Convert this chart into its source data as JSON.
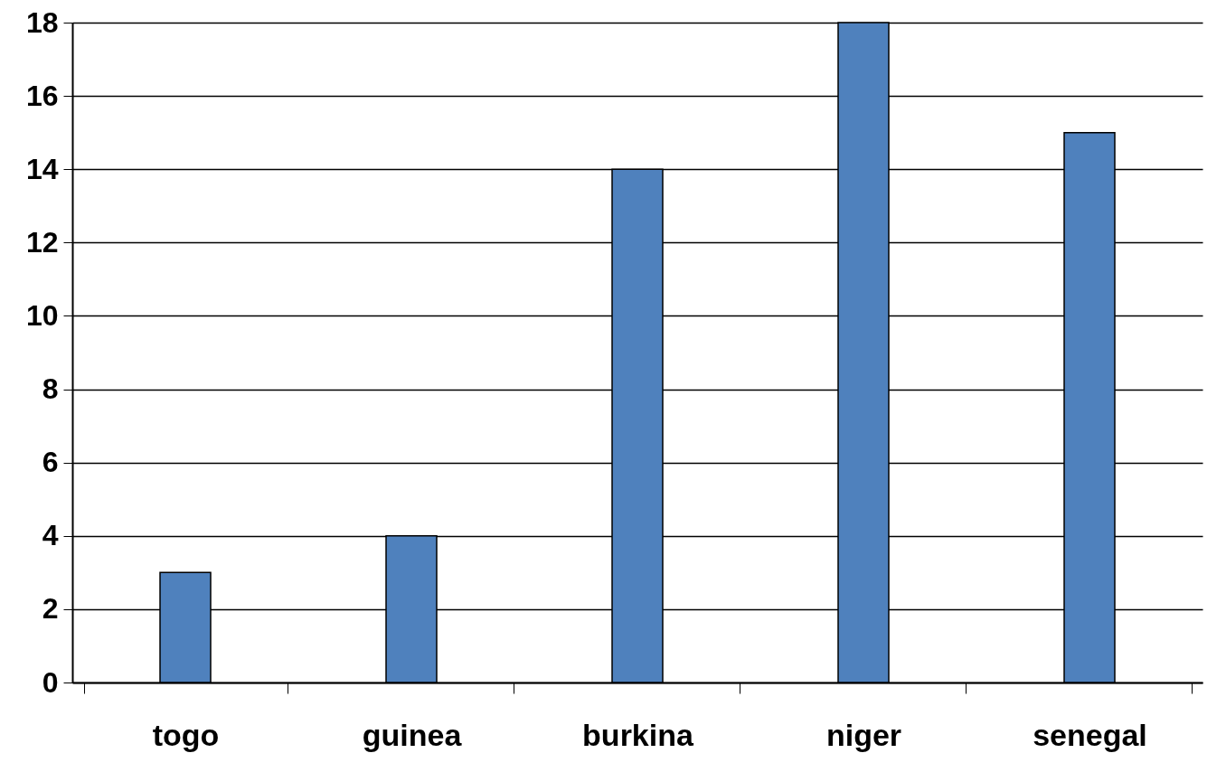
{
  "chart_data": {
    "type": "bar",
    "categories": [
      "togo",
      "guinea",
      "burkina",
      "niger",
      "senegal"
    ],
    "values": [
      3,
      4,
      14,
      18,
      15
    ],
    "color": "#4f81bd",
    "ylim": [
      0,
      18
    ],
    "yticks": [
      0,
      2,
      4,
      6,
      8,
      10,
      12,
      14,
      16,
      18
    ],
    "grid": "y"
  }
}
